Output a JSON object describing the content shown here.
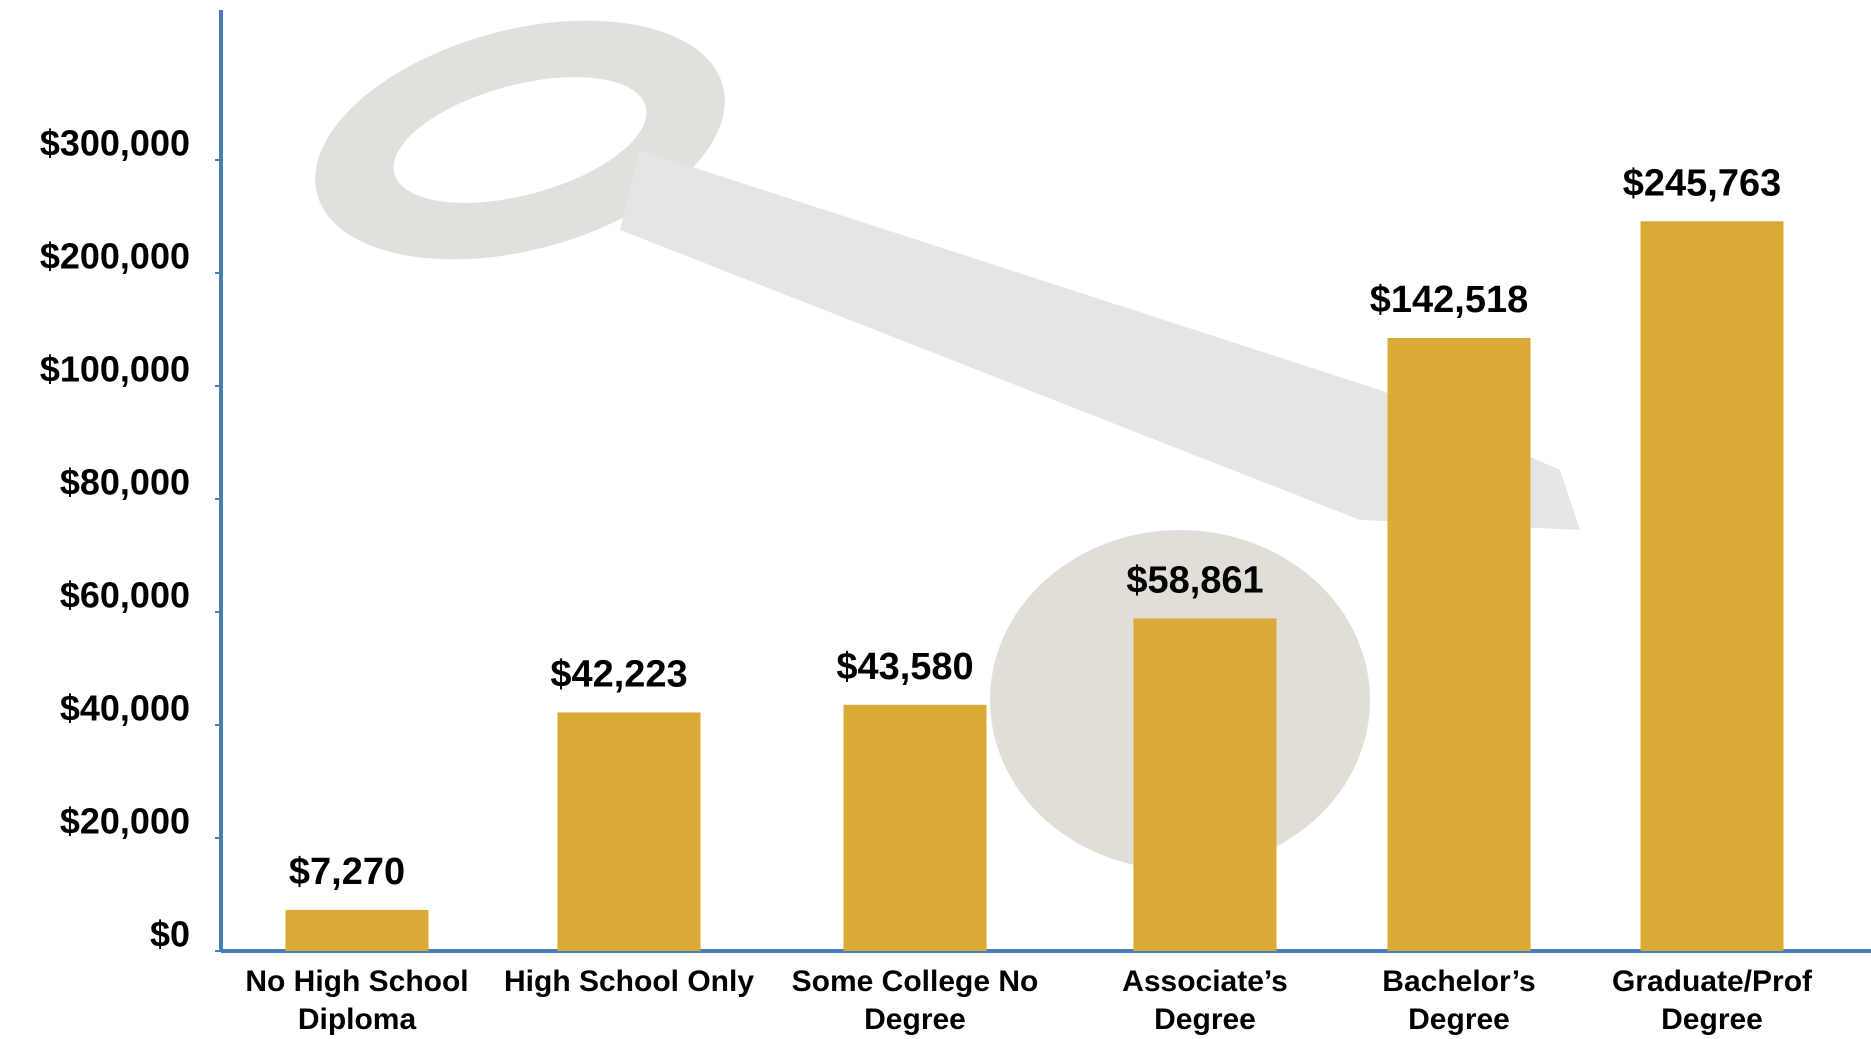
{
  "chart_data": {
    "type": "bar",
    "categories": [
      "No High School Diploma",
      "High School Only",
      "Some College No Degree",
      "Associate’s Degree",
      "Bachelor’s Degree",
      "Graduate/Prof Degree"
    ],
    "values": [
      7270,
      42223,
      43580,
      58861,
      142518,
      245763
    ],
    "value_labels": [
      "$7,270",
      "$42,223",
      "$43,580",
      "$58,861",
      "$142,518",
      "$245,763"
    ],
    "color": "#d9aa36",
    "ylim": [
      0,
      300000
    ],
    "yticks": [
      {
        "value": 0,
        "label": "$0"
      },
      {
        "value": 20000,
        "label": "$20,000"
      },
      {
        "value": 40000,
        "label": "$40,000"
      },
      {
        "value": 60000,
        "label": "$60,000"
      },
      {
        "value": 80000,
        "label": "$80,000"
      },
      {
        "value": 100000,
        "label": "$100,000"
      },
      {
        "value": 200000,
        "label": "$200,000"
      },
      {
        "value": 300000,
        "label": "$300,000"
      }
    ]
  }
}
